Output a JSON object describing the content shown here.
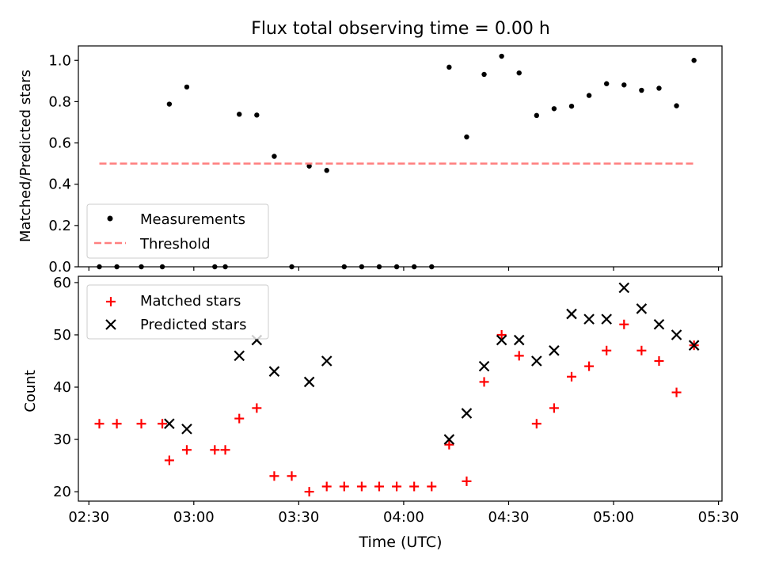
{
  "figure": {
    "title": "Flux total observing time = 0.00 h",
    "xlabel": "Time (UTC)"
  },
  "colors": {
    "measurements": "#000000",
    "threshold": "#ff7f7f",
    "matched": "#ff0000",
    "predicted": "#000000"
  },
  "chart_data": [
    {
      "type": "scatter",
      "panel": "top",
      "ylabel": "Matched/Predicted stars",
      "xlim": [
        "02:27",
        "05:31"
      ],
      "ylim": [
        0,
        1.07
      ],
      "x_ticks": [
        "02:30",
        "03:00",
        "03:30",
        "04:00",
        "04:30",
        "05:00",
        "05:30"
      ],
      "y_ticks": [
        "0.0",
        "0.2",
        "0.4",
        "0.6",
        "0.8",
        "1.0"
      ],
      "x_tick_labels_shown": false,
      "legend_position": "lower-left",
      "series": [
        {
          "name": "Measurements",
          "marker": "dot",
          "points": [
            [
              "02:33",
              0
            ],
            [
              "02:38",
              0
            ],
            [
              "02:45",
              0
            ],
            [
              "02:51",
              0
            ],
            [
              "02:53",
              0.788
            ],
            [
              "02:58",
              0.871
            ],
            [
              "03:06",
              0
            ],
            [
              "03:09",
              0
            ],
            [
              "03:13",
              0.739
            ],
            [
              "03:18",
              0.735
            ],
            [
              "03:23",
              0.535
            ],
            [
              "03:28",
              0
            ],
            [
              "03:33",
              0.488
            ],
            [
              "03:38",
              0.467
            ],
            [
              "03:43",
              0
            ],
            [
              "03:48",
              0
            ],
            [
              "03:53",
              0
            ],
            [
              "03:58",
              0
            ],
            [
              "04:03",
              0
            ],
            [
              "04:08",
              0
            ],
            [
              "04:13",
              0.967
            ],
            [
              "04:18",
              0.629
            ],
            [
              "04:23",
              0.932
            ],
            [
              "04:28",
              1.02
            ],
            [
              "04:33",
              0.939
            ],
            [
              "04:38",
              0.733
            ],
            [
              "04:43",
              0.766
            ],
            [
              "04:48",
              0.778
            ],
            [
              "04:53",
              0.83
            ],
            [
              "04:58",
              0.887
            ],
            [
              "05:03",
              0.881
            ],
            [
              "05:08",
              0.855
            ],
            [
              "05:13",
              0.865
            ],
            [
              "05:18",
              0.78
            ],
            [
              "05:23",
              1.0
            ]
          ]
        },
        {
          "name": "Threshold",
          "marker": "dashed-line",
          "points": [
            [
              "02:33",
              0.5
            ],
            [
              "05:23",
              0.5
            ]
          ]
        }
      ]
    },
    {
      "type": "scatter",
      "panel": "bottom",
      "ylabel": "Count",
      "xlim": [
        "02:27",
        "05:31"
      ],
      "ylim": [
        18.2,
        61.2
      ],
      "x_ticks": [
        "02:30",
        "03:00",
        "03:30",
        "04:00",
        "04:30",
        "05:00",
        "05:30"
      ],
      "y_ticks": [
        "20",
        "30",
        "40",
        "50",
        "60"
      ],
      "legend_position": "upper-left",
      "series": [
        {
          "name": "Matched stars",
          "marker": "plus",
          "points": [
            [
              "02:33",
              33
            ],
            [
              "02:38",
              33
            ],
            [
              "02:45",
              33
            ],
            [
              "02:51",
              33
            ],
            [
              "02:53",
              26
            ],
            [
              "02:58",
              28
            ],
            [
              "03:06",
              28
            ],
            [
              "03:09",
              28
            ],
            [
              "03:13",
              34
            ],
            [
              "03:18",
              36
            ],
            [
              "03:23",
              23
            ],
            [
              "03:28",
              23
            ],
            [
              "03:33",
              20
            ],
            [
              "03:38",
              21
            ],
            [
              "03:43",
              21
            ],
            [
              "03:48",
              21
            ],
            [
              "03:53",
              21
            ],
            [
              "03:58",
              21
            ],
            [
              "04:03",
              21
            ],
            [
              "04:08",
              21
            ],
            [
              "04:13",
              29
            ],
            [
              "04:18",
              22
            ],
            [
              "04:23",
              41
            ],
            [
              "04:28",
              50
            ],
            [
              "04:33",
              46
            ],
            [
              "04:38",
              33
            ],
            [
              "04:43",
              36
            ],
            [
              "04:48",
              42
            ],
            [
              "04:53",
              44
            ],
            [
              "04:58",
              47
            ],
            [
              "05:03",
              52
            ],
            [
              "05:08",
              47
            ],
            [
              "05:13",
              45
            ],
            [
              "05:18",
              39
            ],
            [
              "05:23",
              48
            ]
          ]
        },
        {
          "name": "Predicted stars",
          "marker": "x",
          "points": [
            [
              "02:53",
              33
            ],
            [
              "02:58",
              32
            ],
            [
              "03:13",
              46
            ],
            [
              "03:18",
              49
            ],
            [
              "03:23",
              43
            ],
            [
              "03:33",
              41
            ],
            [
              "03:38",
              45
            ],
            [
              "04:13",
              30
            ],
            [
              "04:18",
              35
            ],
            [
              "04:23",
              44
            ],
            [
              "04:28",
              49
            ],
            [
              "04:33",
              49
            ],
            [
              "04:38",
              45
            ],
            [
              "04:43",
              47
            ],
            [
              "04:48",
              54
            ],
            [
              "04:53",
              53
            ],
            [
              "04:58",
              53
            ],
            [
              "05:03",
              59
            ],
            [
              "05:08",
              55
            ],
            [
              "05:13",
              52
            ],
            [
              "05:18",
              50
            ],
            [
              "05:23",
              48
            ]
          ]
        }
      ]
    }
  ]
}
